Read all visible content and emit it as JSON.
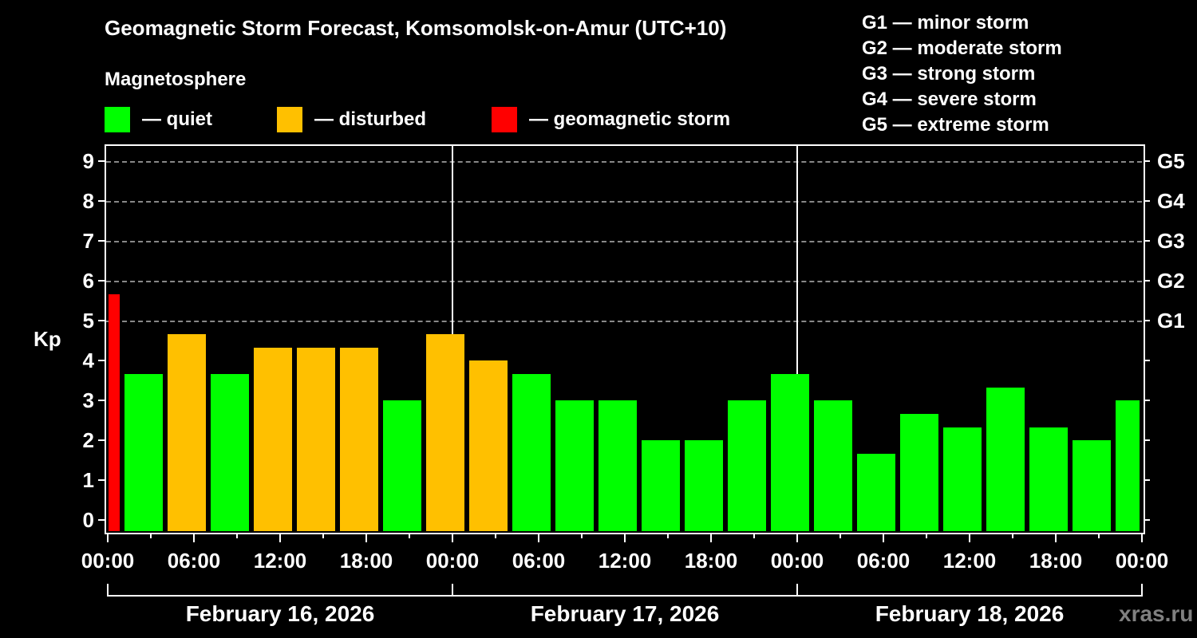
{
  "header": {
    "title": "Geomagnetic Storm Forecast, Komsomolsk-on-Amur (UTC+10)",
    "subtitle": "Magnetosphere"
  },
  "legend": [
    {
      "label": "— quiet",
      "color": "#00ff00"
    },
    {
      "label": "— disturbed",
      "color": "#ffc000"
    },
    {
      "label": "— geomagnetic storm",
      "color": "#ff0000"
    }
  ],
  "g_scale_legend": [
    "G1 — minor storm",
    "G2 — moderate storm",
    "G3 — strong storm",
    "G4 — severe storm",
    "G5 — extreme storm"
  ],
  "axes": {
    "y_label": "Kp",
    "y_ticks": [
      "0",
      "1",
      "2",
      "3",
      "4",
      "5",
      "6",
      "7",
      "8",
      "9"
    ],
    "g_ticks": [
      "G1",
      "G2",
      "G3",
      "G4",
      "G5"
    ],
    "x_ticks": [
      "00:00",
      "06:00",
      "12:00",
      "18:00",
      "00:00",
      "06:00",
      "12:00",
      "18:00",
      "00:00",
      "06:00",
      "12:00",
      "18:00",
      "00:00"
    ],
    "dates": [
      "February 16, 2026",
      "February 17, 2026",
      "February 18, 2026"
    ]
  },
  "watermark": "xras.ru",
  "chart_data": {
    "type": "bar",
    "title": "Geomagnetic Storm Forecast, Komsomolsk-on-Amur (UTC+10)",
    "subtitle": "Magnetosphere",
    "xlabel": "",
    "ylabel": "Kp",
    "ylim": [
      0,
      9
    ],
    "y2_labels": {
      "5": "G1",
      "6": "G2",
      "7": "G3",
      "8": "G4",
      "9": "G5"
    },
    "grid": "dashed horizontal at Kp 5-9",
    "legend_position": "top",
    "bars": [
      {
        "start": "Feb 15 22:00",
        "end": "Feb 16 01:00",
        "kp": 5.67,
        "status": "storm"
      },
      {
        "start": "Feb 16 01:00",
        "end": "Feb 16 04:00",
        "kp": 3.67,
        "status": "quiet"
      },
      {
        "start": "Feb 16 04:00",
        "end": "Feb 16 07:00",
        "kp": 4.67,
        "status": "disturbed"
      },
      {
        "start": "Feb 16 07:00",
        "end": "Feb 16 10:00",
        "kp": 3.67,
        "status": "quiet"
      },
      {
        "start": "Feb 16 10:00",
        "end": "Feb 16 13:00",
        "kp": 4.33,
        "status": "disturbed"
      },
      {
        "start": "Feb 16 13:00",
        "end": "Feb 16 16:00",
        "kp": 4.33,
        "status": "disturbed"
      },
      {
        "start": "Feb 16 16:00",
        "end": "Feb 16 19:00",
        "kp": 4.33,
        "status": "disturbed"
      },
      {
        "start": "Feb 16 19:00",
        "end": "Feb 16 22:00",
        "kp": 3.0,
        "status": "quiet"
      },
      {
        "start": "Feb 16 22:00",
        "end": "Feb 17 01:00",
        "kp": 4.67,
        "status": "disturbed"
      },
      {
        "start": "Feb 17 01:00",
        "end": "Feb 17 04:00",
        "kp": 4.0,
        "status": "disturbed"
      },
      {
        "start": "Feb 17 04:00",
        "end": "Feb 17 07:00",
        "kp": 3.67,
        "status": "quiet"
      },
      {
        "start": "Feb 17 07:00",
        "end": "Feb 17 10:00",
        "kp": 3.0,
        "status": "quiet"
      },
      {
        "start": "Feb 17 10:00",
        "end": "Feb 17 13:00",
        "kp": 3.0,
        "status": "quiet"
      },
      {
        "start": "Feb 17 13:00",
        "end": "Feb 17 16:00",
        "kp": 2.0,
        "status": "quiet"
      },
      {
        "start": "Feb 17 16:00",
        "end": "Feb 17 19:00",
        "kp": 2.0,
        "status": "quiet"
      },
      {
        "start": "Feb 17 19:00",
        "end": "Feb 17 22:00",
        "kp": 3.0,
        "status": "quiet"
      },
      {
        "start": "Feb 17 22:00",
        "end": "Feb 18 01:00",
        "kp": 3.67,
        "status": "quiet"
      },
      {
        "start": "Feb 18 01:00",
        "end": "Feb 18 04:00",
        "kp": 3.0,
        "status": "quiet"
      },
      {
        "start": "Feb 18 04:00",
        "end": "Feb 18 07:00",
        "kp": 1.67,
        "status": "quiet"
      },
      {
        "start": "Feb 18 07:00",
        "end": "Feb 18 10:00",
        "kp": 2.67,
        "status": "quiet"
      },
      {
        "start": "Feb 18 10:00",
        "end": "Feb 18 13:00",
        "kp": 2.33,
        "status": "quiet"
      },
      {
        "start": "Feb 18 13:00",
        "end": "Feb 18 16:00",
        "kp": 3.33,
        "status": "quiet"
      },
      {
        "start": "Feb 18 16:00",
        "end": "Feb 18 19:00",
        "kp": 2.33,
        "status": "quiet"
      },
      {
        "start": "Feb 18 19:00",
        "end": "Feb 18 22:00",
        "kp": 2.0,
        "status": "quiet"
      },
      {
        "start": "Feb 18 22:00",
        "end": "Feb 19 01:00",
        "kp": 3.0,
        "status": "quiet"
      }
    ],
    "bar_hours_from_start": [
      -2,
      1,
      4,
      7,
      10,
      13,
      16,
      19,
      22,
      25,
      28,
      31,
      34,
      37,
      40,
      43,
      46,
      49,
      52,
      55,
      58,
      61,
      64,
      67,
      70
    ],
    "colors": {
      "quiet": "#00ff00",
      "disturbed": "#ffc000",
      "storm": "#ff0000"
    }
  }
}
